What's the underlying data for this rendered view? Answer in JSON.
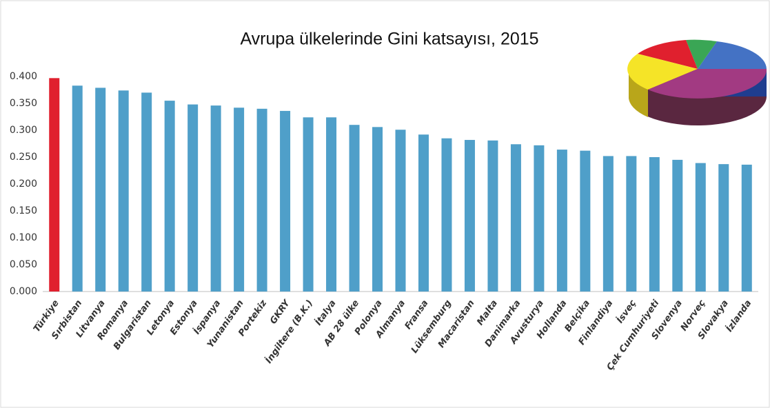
{
  "chart_data": {
    "type": "bar",
    "title": "Avrupa ülkelerinde Gini katsayısı, 2015",
    "categories": [
      "Türkiye",
      "Sırbistan",
      "Litvanya",
      "Romanya",
      "Bulgaristan",
      "Letonya",
      "Estonya",
      "İspanya",
      "Yunanistan",
      "Portekiz",
      "GKRY",
      "İngiltere (B.K.)",
      "İtalya",
      "AB 28 ülke",
      "Polonya",
      "Almanya",
      "Fransa",
      "Lüksemburg",
      "Macaristan",
      "Malta",
      "Danimarka",
      "Avusturya",
      "Hollanda",
      "Belçika",
      "Finlandiya",
      "İsveç",
      "Çek Cumhuriyeti",
      "Slovenya",
      "Norveç",
      "Slovakya",
      "İzlanda"
    ],
    "values": [
      0.397,
      0.383,
      0.379,
      0.374,
      0.37,
      0.355,
      0.348,
      0.346,
      0.342,
      0.34,
      0.336,
      0.324,
      0.324,
      0.31,
      0.306,
      0.301,
      0.292,
      0.285,
      0.282,
      0.281,
      0.274,
      0.272,
      0.264,
      0.262,
      0.252,
      0.252,
      0.25,
      0.245,
      0.239,
      0.237,
      0.236
    ],
    "colors": [
      "#e0202e",
      "#4f9fc9",
      "#4f9fc9",
      "#4f9fc9",
      "#4f9fc9",
      "#4f9fc9",
      "#4f9fc9",
      "#4f9fc9",
      "#4f9fc9",
      "#4f9fc9",
      "#4f9fc9",
      "#4f9fc9",
      "#4f9fc9",
      "#4f9fc9",
      "#4f9fc9",
      "#4f9fc9",
      "#4f9fc9",
      "#4f9fc9",
      "#4f9fc9",
      "#4f9fc9",
      "#4f9fc9",
      "#4f9fc9",
      "#4f9fc9",
      "#4f9fc9",
      "#4f9fc9",
      "#4f9fc9",
      "#4f9fc9",
      "#4f9fc9",
      "#4f9fc9",
      "#4f9fc9",
      "#4f9fc9"
    ],
    "ylim": [
      0,
      0.4
    ],
    "yticks": [
      {
        "value": 0,
        "label": "0.000"
      },
      {
        "value": 0.05,
        "label": "0.050"
      },
      {
        "value": 0.1,
        "label": "0.100"
      },
      {
        "value": 0.15,
        "label": "0.150"
      },
      {
        "value": 0.2,
        "label": "0.200"
      },
      {
        "value": 0.25,
        "label": "0.250"
      },
      {
        "value": 0.3,
        "label": "0.300"
      },
      {
        "value": 0.35,
        "label": "0.350"
      },
      {
        "value": 0.4,
        "label": "0.400"
      }
    ],
    "grid": false
  }
}
